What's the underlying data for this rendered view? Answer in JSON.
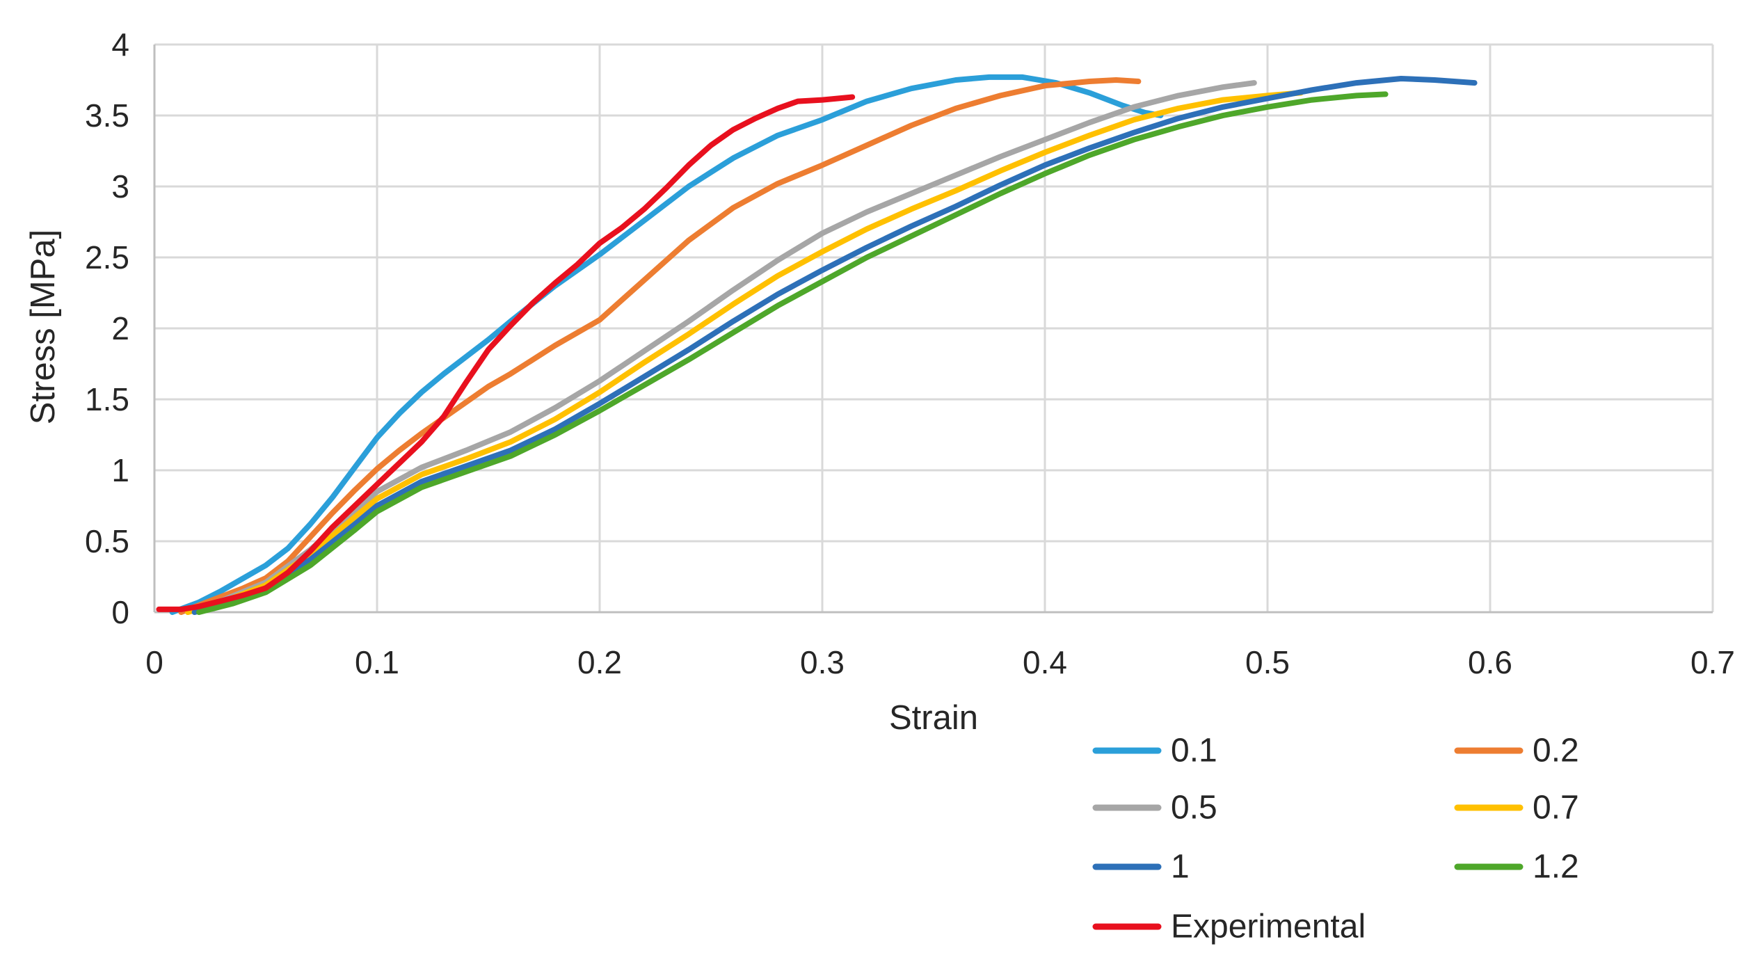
{
  "figure": {
    "background": "#FFFFFF",
    "description": "Stress-strain line chart comparing simulated curves (labelled 0.1, 0.2, 0.5, 0.7, 1, 1.2) with an Experimental curve"
  },
  "chart_data": {
    "type": "line",
    "title": "",
    "xlabel": "Strain",
    "ylabel": "Stress [MPa]",
    "xlim": [
      0,
      0.7
    ],
    "ylim": [
      0,
      4
    ],
    "x_ticks": [
      "0",
      "0.1",
      "0.2",
      "0.3",
      "0.4",
      "0.5",
      "0.6",
      "0.7"
    ],
    "y_ticks": [
      "0",
      "0.5",
      "1",
      "1.5",
      "2",
      "2.5",
      "3",
      "3.5",
      "4"
    ],
    "grid": true,
    "legend_position": "bottom, two columns",
    "legend_order": [
      [
        "0.1",
        "0.2"
      ],
      [
        "0.5",
        "0.7"
      ],
      [
        "1",
        "1.2"
      ],
      [
        "Experimental"
      ]
    ],
    "colors": {
      "gridline": "#D9D9D9",
      "axis_line": "#BFBFBF",
      "text": "#262626"
    },
    "series": [
      {
        "name": "0.1",
        "color": "#2B9FD9",
        "points": [
          [
            0.008,
            0
          ],
          [
            0.02,
            0.07
          ],
          [
            0.03,
            0.15
          ],
          [
            0.04,
            0.24
          ],
          [
            0.05,
            0.33
          ],
          [
            0.06,
            0.45
          ],
          [
            0.07,
            0.62
          ],
          [
            0.08,
            0.81
          ],
          [
            0.09,
            1.02
          ],
          [
            0.1,
            1.23
          ],
          [
            0.11,
            1.4
          ],
          [
            0.12,
            1.55
          ],
          [
            0.13,
            1.68
          ],
          [
            0.14,
            1.8
          ],
          [
            0.15,
            1.92
          ],
          [
            0.16,
            2.05
          ],
          [
            0.18,
            2.3
          ],
          [
            0.2,
            2.52
          ],
          [
            0.22,
            2.76
          ],
          [
            0.24,
            3.0
          ],
          [
            0.26,
            3.2
          ],
          [
            0.28,
            3.36
          ],
          [
            0.3,
            3.47
          ],
          [
            0.32,
            3.6
          ],
          [
            0.34,
            3.69
          ],
          [
            0.36,
            3.75
          ],
          [
            0.375,
            3.77
          ],
          [
            0.39,
            3.77
          ],
          [
            0.405,
            3.73
          ],
          [
            0.42,
            3.66
          ],
          [
            0.435,
            3.57
          ],
          [
            0.445,
            3.52
          ],
          [
            0.452,
            3.5
          ]
        ]
      },
      {
        "name": "0.2",
        "color": "#ED7D31",
        "points": [
          [
            0.012,
            0
          ],
          [
            0.025,
            0.08
          ],
          [
            0.04,
            0.17
          ],
          [
            0.05,
            0.24
          ],
          [
            0.06,
            0.36
          ],
          [
            0.07,
            0.53
          ],
          [
            0.08,
            0.7
          ],
          [
            0.09,
            0.86
          ],
          [
            0.1,
            1.01
          ],
          [
            0.11,
            1.14
          ],
          [
            0.12,
            1.26
          ],
          [
            0.14,
            1.48
          ],
          [
            0.15,
            1.59
          ],
          [
            0.16,
            1.68
          ],
          [
            0.18,
            1.88
          ],
          [
            0.2,
            2.06
          ],
          [
            0.22,
            2.34
          ],
          [
            0.24,
            2.62
          ],
          [
            0.26,
            2.85
          ],
          [
            0.28,
            3.02
          ],
          [
            0.3,
            3.15
          ],
          [
            0.32,
            3.29
          ],
          [
            0.34,
            3.43
          ],
          [
            0.36,
            3.55
          ],
          [
            0.38,
            3.64
          ],
          [
            0.4,
            3.71
          ],
          [
            0.42,
            3.74
          ],
          [
            0.432,
            3.75
          ],
          [
            0.442,
            3.74
          ]
        ]
      },
      {
        "name": "0.5",
        "color": "#A6A6A6",
        "points": [
          [
            0.015,
            0
          ],
          [
            0.03,
            0.08
          ],
          [
            0.05,
            0.21
          ],
          [
            0.07,
            0.44
          ],
          [
            0.09,
            0.71
          ],
          [
            0.1,
            0.85
          ],
          [
            0.12,
            1.02
          ],
          [
            0.14,
            1.14
          ],
          [
            0.16,
            1.27
          ],
          [
            0.18,
            1.44
          ],
          [
            0.2,
            1.63
          ],
          [
            0.22,
            1.84
          ],
          [
            0.24,
            2.05
          ],
          [
            0.26,
            2.27
          ],
          [
            0.28,
            2.48
          ],
          [
            0.3,
            2.67
          ],
          [
            0.32,
            2.82
          ],
          [
            0.34,
            2.95
          ],
          [
            0.36,
            3.08
          ],
          [
            0.38,
            3.21
          ],
          [
            0.4,
            3.33
          ],
          [
            0.42,
            3.45
          ],
          [
            0.44,
            3.56
          ],
          [
            0.46,
            3.64
          ],
          [
            0.48,
            3.7
          ],
          [
            0.494,
            3.73
          ]
        ]
      },
      {
        "name": "0.7",
        "color": "#FFC000",
        "points": [
          [
            0.015,
            0
          ],
          [
            0.03,
            0.07
          ],
          [
            0.05,
            0.19
          ],
          [
            0.07,
            0.41
          ],
          [
            0.09,
            0.67
          ],
          [
            0.1,
            0.8
          ],
          [
            0.12,
            0.97
          ],
          [
            0.14,
            1.08
          ],
          [
            0.16,
            1.2
          ],
          [
            0.18,
            1.36
          ],
          [
            0.2,
            1.55
          ],
          [
            0.22,
            1.76
          ],
          [
            0.24,
            1.96
          ],
          [
            0.26,
            2.17
          ],
          [
            0.28,
            2.37
          ],
          [
            0.3,
            2.54
          ],
          [
            0.32,
            2.7
          ],
          [
            0.34,
            2.84
          ],
          [
            0.36,
            2.97
          ],
          [
            0.38,
            3.11
          ],
          [
            0.4,
            3.24
          ],
          [
            0.42,
            3.36
          ],
          [
            0.44,
            3.47
          ],
          [
            0.46,
            3.55
          ],
          [
            0.48,
            3.61
          ],
          [
            0.5,
            3.64
          ],
          [
            0.515,
            3.66
          ]
        ]
      },
      {
        "name": "1",
        "color": "#2D70B8",
        "points": [
          [
            0.018,
            0
          ],
          [
            0.035,
            0.07
          ],
          [
            0.05,
            0.17
          ],
          [
            0.07,
            0.37
          ],
          [
            0.09,
            0.62
          ],
          [
            0.1,
            0.75
          ],
          [
            0.12,
            0.92
          ],
          [
            0.14,
            1.03
          ],
          [
            0.16,
            1.14
          ],
          [
            0.18,
            1.29
          ],
          [
            0.2,
            1.47
          ],
          [
            0.22,
            1.66
          ],
          [
            0.24,
            1.85
          ],
          [
            0.26,
            2.05
          ],
          [
            0.28,
            2.24
          ],
          [
            0.3,
            2.41
          ],
          [
            0.32,
            2.57
          ],
          [
            0.34,
            2.72
          ],
          [
            0.36,
            2.86
          ],
          [
            0.38,
            3.01
          ],
          [
            0.4,
            3.15
          ],
          [
            0.42,
            3.27
          ],
          [
            0.44,
            3.38
          ],
          [
            0.46,
            3.48
          ],
          [
            0.48,
            3.56
          ],
          [
            0.5,
            3.62
          ],
          [
            0.52,
            3.68
          ],
          [
            0.54,
            3.73
          ],
          [
            0.56,
            3.76
          ],
          [
            0.575,
            3.75
          ],
          [
            0.593,
            3.73
          ]
        ]
      },
      {
        "name": "1.2",
        "color": "#4EA72A",
        "points": [
          [
            0.02,
            0
          ],
          [
            0.035,
            0.06
          ],
          [
            0.05,
            0.14
          ],
          [
            0.07,
            0.33
          ],
          [
            0.09,
            0.58
          ],
          [
            0.1,
            0.71
          ],
          [
            0.12,
            0.88
          ],
          [
            0.14,
            0.99
          ],
          [
            0.16,
            1.1
          ],
          [
            0.18,
            1.25
          ],
          [
            0.2,
            1.42
          ],
          [
            0.22,
            1.6
          ],
          [
            0.24,
            1.78
          ],
          [
            0.26,
            1.97
          ],
          [
            0.28,
            2.16
          ],
          [
            0.3,
            2.33
          ],
          [
            0.32,
            2.5
          ],
          [
            0.34,
            2.65
          ],
          [
            0.36,
            2.8
          ],
          [
            0.38,
            2.95
          ],
          [
            0.4,
            3.09
          ],
          [
            0.42,
            3.22
          ],
          [
            0.44,
            3.33
          ],
          [
            0.46,
            3.42
          ],
          [
            0.48,
            3.5
          ],
          [
            0.5,
            3.56
          ],
          [
            0.52,
            3.61
          ],
          [
            0.54,
            3.64
          ],
          [
            0.553,
            3.65
          ]
        ]
      },
      {
        "name": "Experimental",
        "color": "#E8101E",
        "points": [
          [
            0.002,
            0.02
          ],
          [
            0.012,
            0.02
          ],
          [
            0.02,
            0.04
          ],
          [
            0.03,
            0.08
          ],
          [
            0.04,
            0.12
          ],
          [
            0.05,
            0.17
          ],
          [
            0.06,
            0.28
          ],
          [
            0.07,
            0.43
          ],
          [
            0.08,
            0.6
          ],
          [
            0.09,
            0.75
          ],
          [
            0.1,
            0.9
          ],
          [
            0.11,
            1.05
          ],
          [
            0.12,
            1.2
          ],
          [
            0.13,
            1.38
          ],
          [
            0.14,
            1.62
          ],
          [
            0.15,
            1.85
          ],
          [
            0.16,
            2.02
          ],
          [
            0.17,
            2.18
          ],
          [
            0.18,
            2.32
          ],
          [
            0.19,
            2.45
          ],
          [
            0.2,
            2.6
          ],
          [
            0.21,
            2.71
          ],
          [
            0.22,
            2.84
          ],
          [
            0.23,
            2.99
          ],
          [
            0.24,
            3.15
          ],
          [
            0.25,
            3.29
          ],
          [
            0.26,
            3.4
          ],
          [
            0.27,
            3.48
          ],
          [
            0.28,
            3.55
          ],
          [
            0.289,
            3.6
          ],
          [
            0.3,
            3.61
          ],
          [
            0.307,
            3.62
          ],
          [
            0.3135,
            3.63
          ]
        ]
      }
    ]
  }
}
